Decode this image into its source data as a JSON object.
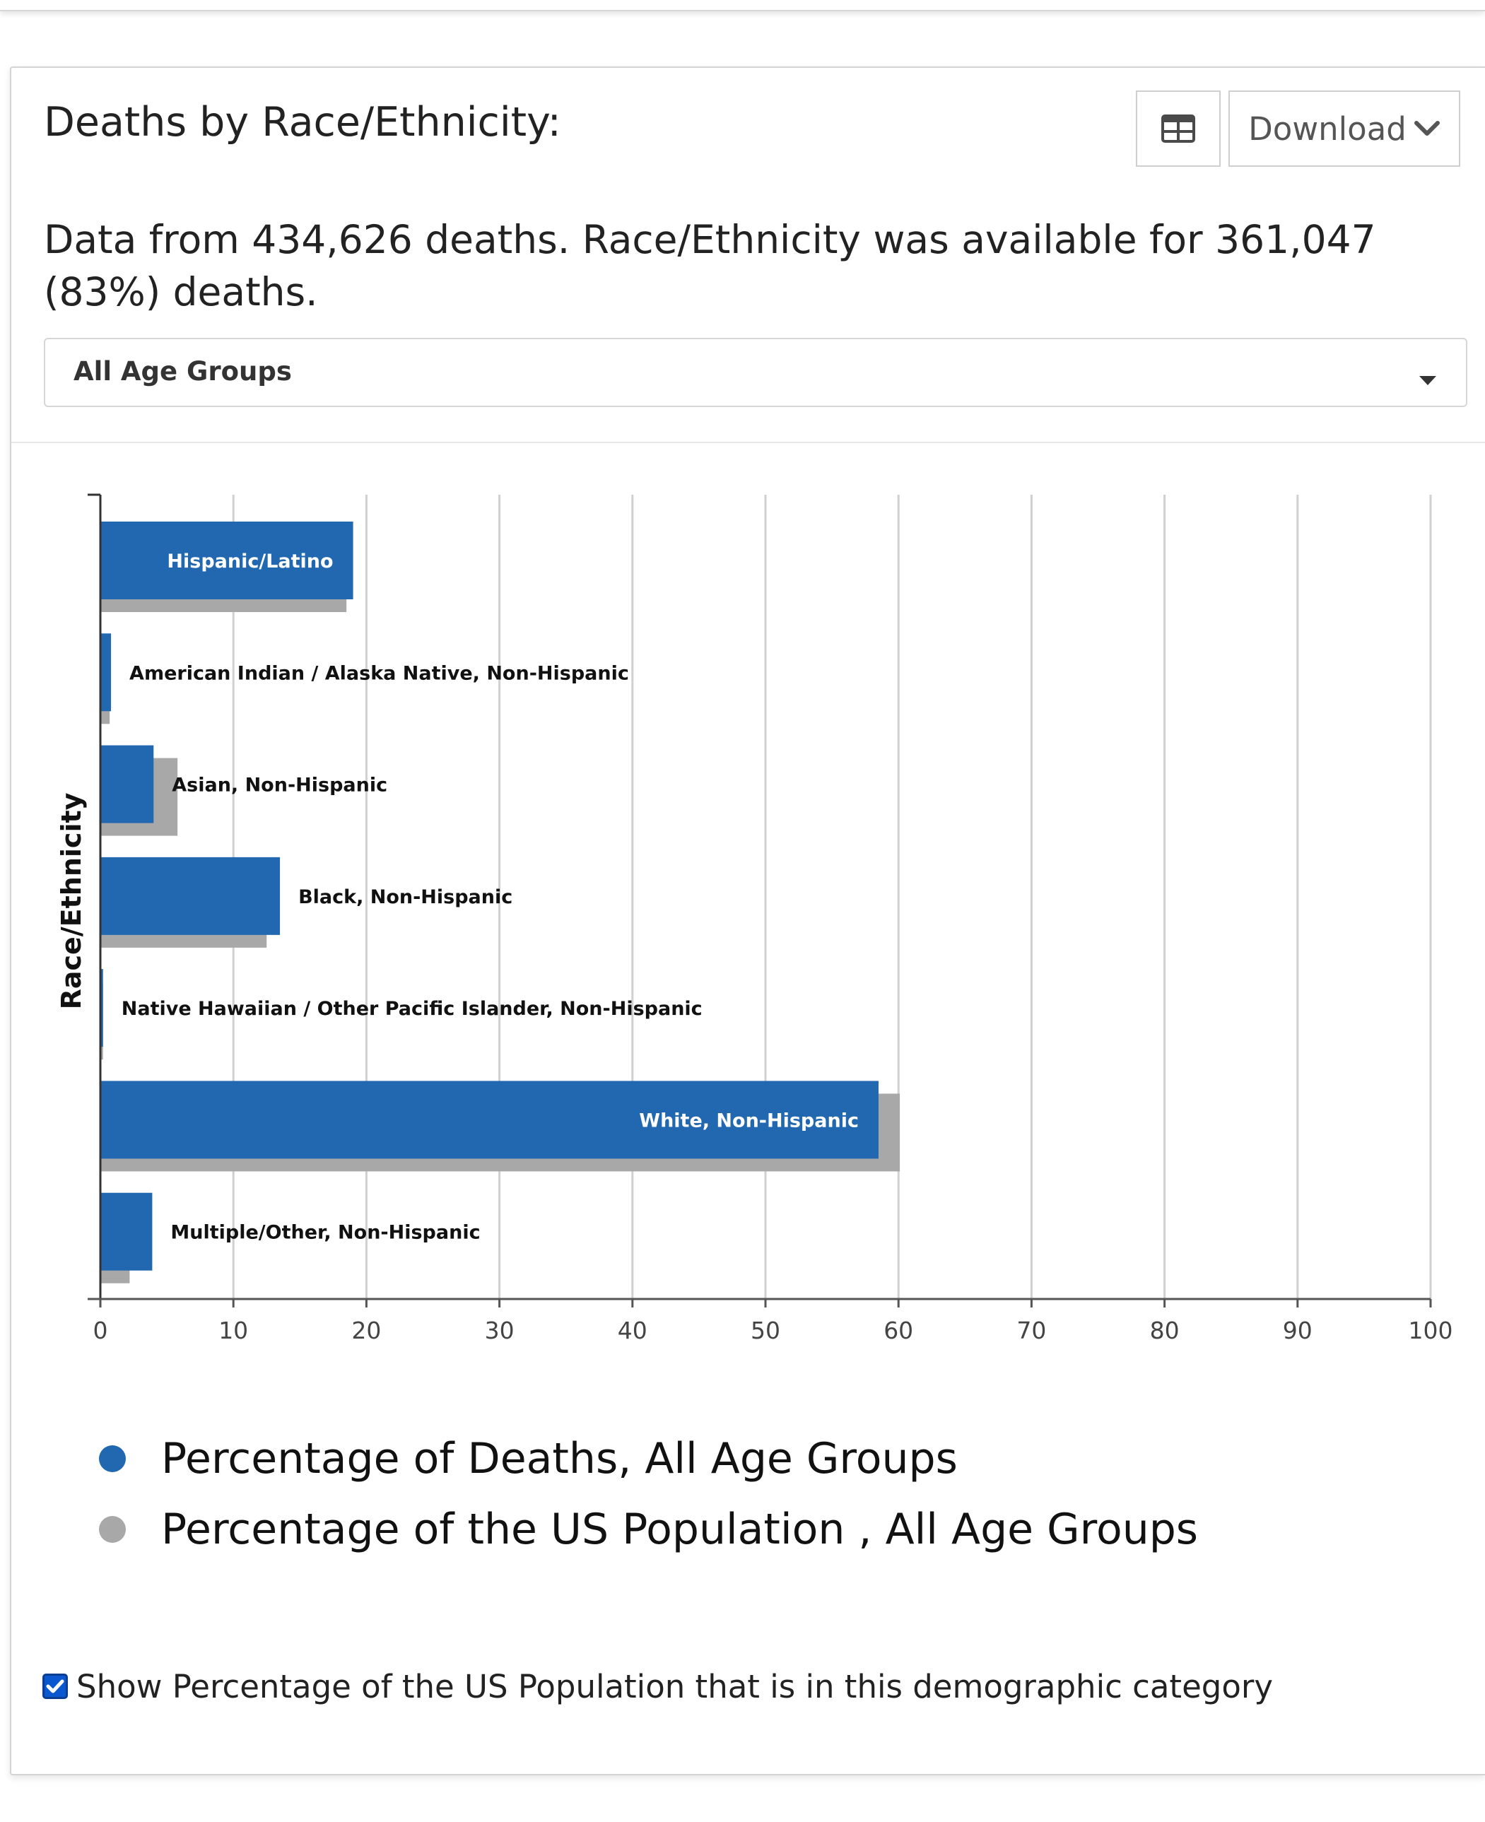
{
  "card": {
    "title": "Deaths by Race/Ethnicity:",
    "summary": "Data from 434,626 deaths. Race/Ethnicity was available for 361,047 (83%) deaths.",
    "download_label": "Download",
    "age_filter_value": "All Age Groups",
    "show_population_label": "Show Percentage of the US Population that is in this demographic category",
    "show_population_checked": true
  },
  "icons": {
    "table_button": "table-icon",
    "download_caret": "chevron-down-icon",
    "select_caret": "caret-down-icon",
    "checkbox_mark": "check-icon"
  },
  "colors": {
    "deaths": "#2268b1",
    "population": "#a8a8a8",
    "checkbox": "#0b57d0"
  },
  "chart_data": {
    "type": "bar",
    "orientation": "horizontal",
    "ylabel": "Race/Ethnicity",
    "xlabel": "",
    "xlim": [
      0,
      100
    ],
    "xticks": [
      0,
      10,
      20,
      30,
      40,
      50,
      60,
      70,
      80,
      90,
      100
    ],
    "grid": true,
    "legend_position": "bottom",
    "categories": [
      "Hispanic/Latino",
      "American Indian / Alaska Native, Non-Hispanic",
      "Asian, Non-Hispanic",
      "Black, Non-Hispanic",
      "Native Hawaiian / Other Pacific Islander, Non-Hispanic",
      "White, Non-Hispanic",
      "Multiple/Other, Non-Hispanic"
    ],
    "series": [
      {
        "name": "Percentage of Deaths, All Age Groups",
        "values": [
          19.0,
          0.8,
          4.0,
          13.5,
          0.2,
          58.5,
          3.9
        ]
      },
      {
        "name": "Percentage of the US Population , All Age Groups",
        "values": [
          18.5,
          0.7,
          5.8,
          12.5,
          0.2,
          60.1,
          2.2
        ]
      }
    ]
  }
}
